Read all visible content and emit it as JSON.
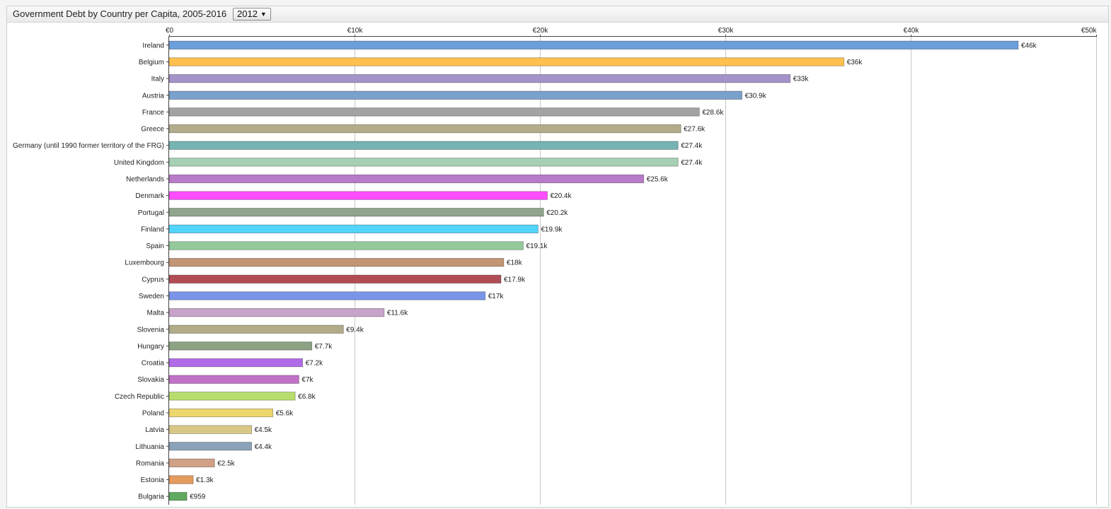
{
  "header": {
    "title": "Government Debt by Country per Capita, 2005-2016",
    "year_selected": "2012",
    "caret": "▼"
  },
  "chart_data": {
    "type": "bar",
    "orientation": "horizontal",
    "title": "Government Debt by Country per Capita, 2005-2016",
    "xlabel": "",
    "ylabel": "",
    "xlim": [
      0,
      50000
    ],
    "grid": true,
    "x_ticks": [
      {
        "value": 0,
        "label": "€0"
      },
      {
        "value": 10000,
        "label": "€10k"
      },
      {
        "value": 20000,
        "label": "€20k"
      },
      {
        "value": 30000,
        "label": "€30k"
      },
      {
        "value": 40000,
        "label": "€40k"
      },
      {
        "value": 50000,
        "label": "€50k"
      }
    ],
    "bars": [
      {
        "category": "Ireland",
        "value": 45800,
        "label": "€46k",
        "color": "#6a9fdb"
      },
      {
        "category": "Belgium",
        "value": 36400,
        "label": "€36k",
        "color": "#ffc04d"
      },
      {
        "category": "Italy",
        "value": 33500,
        "label": "€33k",
        "color": "#a393c8"
      },
      {
        "category": "Austria",
        "value": 30900,
        "label": "€30.9k",
        "color": "#7aa1cc"
      },
      {
        "category": "France",
        "value": 28600,
        "label": "€28.6k",
        "color": "#a3a3a3"
      },
      {
        "category": "Greece",
        "value": 27600,
        "label": "€27.6k",
        "color": "#b2ac8a"
      },
      {
        "category": "Germany (until 1990 former territory of the FRG)",
        "value": 27450,
        "label": "€27.4k",
        "color": "#76b3b3"
      },
      {
        "category": "United Kingdom",
        "value": 27450,
        "label": "€27.4k",
        "color": "#a6cfb4"
      },
      {
        "category": "Netherlands",
        "value": 25600,
        "label": "€25.6k",
        "color": "#b87ac9"
      },
      {
        "category": "Denmark",
        "value": 20400,
        "label": "€20.4k",
        "color": "#ff4dff"
      },
      {
        "category": "Portugal",
        "value": 20200,
        "label": "€20.2k",
        "color": "#8fa58c"
      },
      {
        "category": "Finland",
        "value": 19900,
        "label": "€19.9k",
        "color": "#52d4ff"
      },
      {
        "category": "Spain",
        "value": 19100,
        "label": "€19.1k",
        "color": "#94c99b"
      },
      {
        "category": "Luxembourg",
        "value": 18050,
        "label": "€18k",
        "color": "#c29574"
      },
      {
        "category": "Cyprus",
        "value": 17900,
        "label": "€17.9k",
        "color": "#b04d54"
      },
      {
        "category": "Sweden",
        "value": 17050,
        "label": "€17k",
        "color": "#7a95e8"
      },
      {
        "category": "Malta",
        "value": 11600,
        "label": "€11.6k",
        "color": "#c7a3c9"
      },
      {
        "category": "Slovenia",
        "value": 9400,
        "label": "€9.4k",
        "color": "#b2ac8a"
      },
      {
        "category": "Hungary",
        "value": 7700,
        "label": "€7.7k",
        "color": "#8ca283"
      },
      {
        "category": "Croatia",
        "value": 7200,
        "label": "€7.2k",
        "color": "#b06be8"
      },
      {
        "category": "Slovakia",
        "value": 7000,
        "label": "€7k",
        "color": "#c171c6"
      },
      {
        "category": "Czech Republic",
        "value": 6800,
        "label": "€6.8k",
        "color": "#b8dd6e"
      },
      {
        "category": "Poland",
        "value": 5600,
        "label": "€5.6k",
        "color": "#ecd66e"
      },
      {
        "category": "Latvia",
        "value": 4450,
        "label": "€4.5k",
        "color": "#d9c885"
      },
      {
        "category": "Lithuania",
        "value": 4450,
        "label": "€4.4k",
        "color": "#8aa3b8"
      },
      {
        "category": "Romania",
        "value": 2450,
        "label": "€2.5k",
        "color": "#d1a085"
      },
      {
        "category": "Estonia",
        "value": 1300,
        "label": "€1.3k",
        "color": "#e59a5e"
      },
      {
        "category": "Bulgaria",
        "value": 959,
        "label": "€959",
        "color": "#5faa5f"
      }
    ]
  }
}
